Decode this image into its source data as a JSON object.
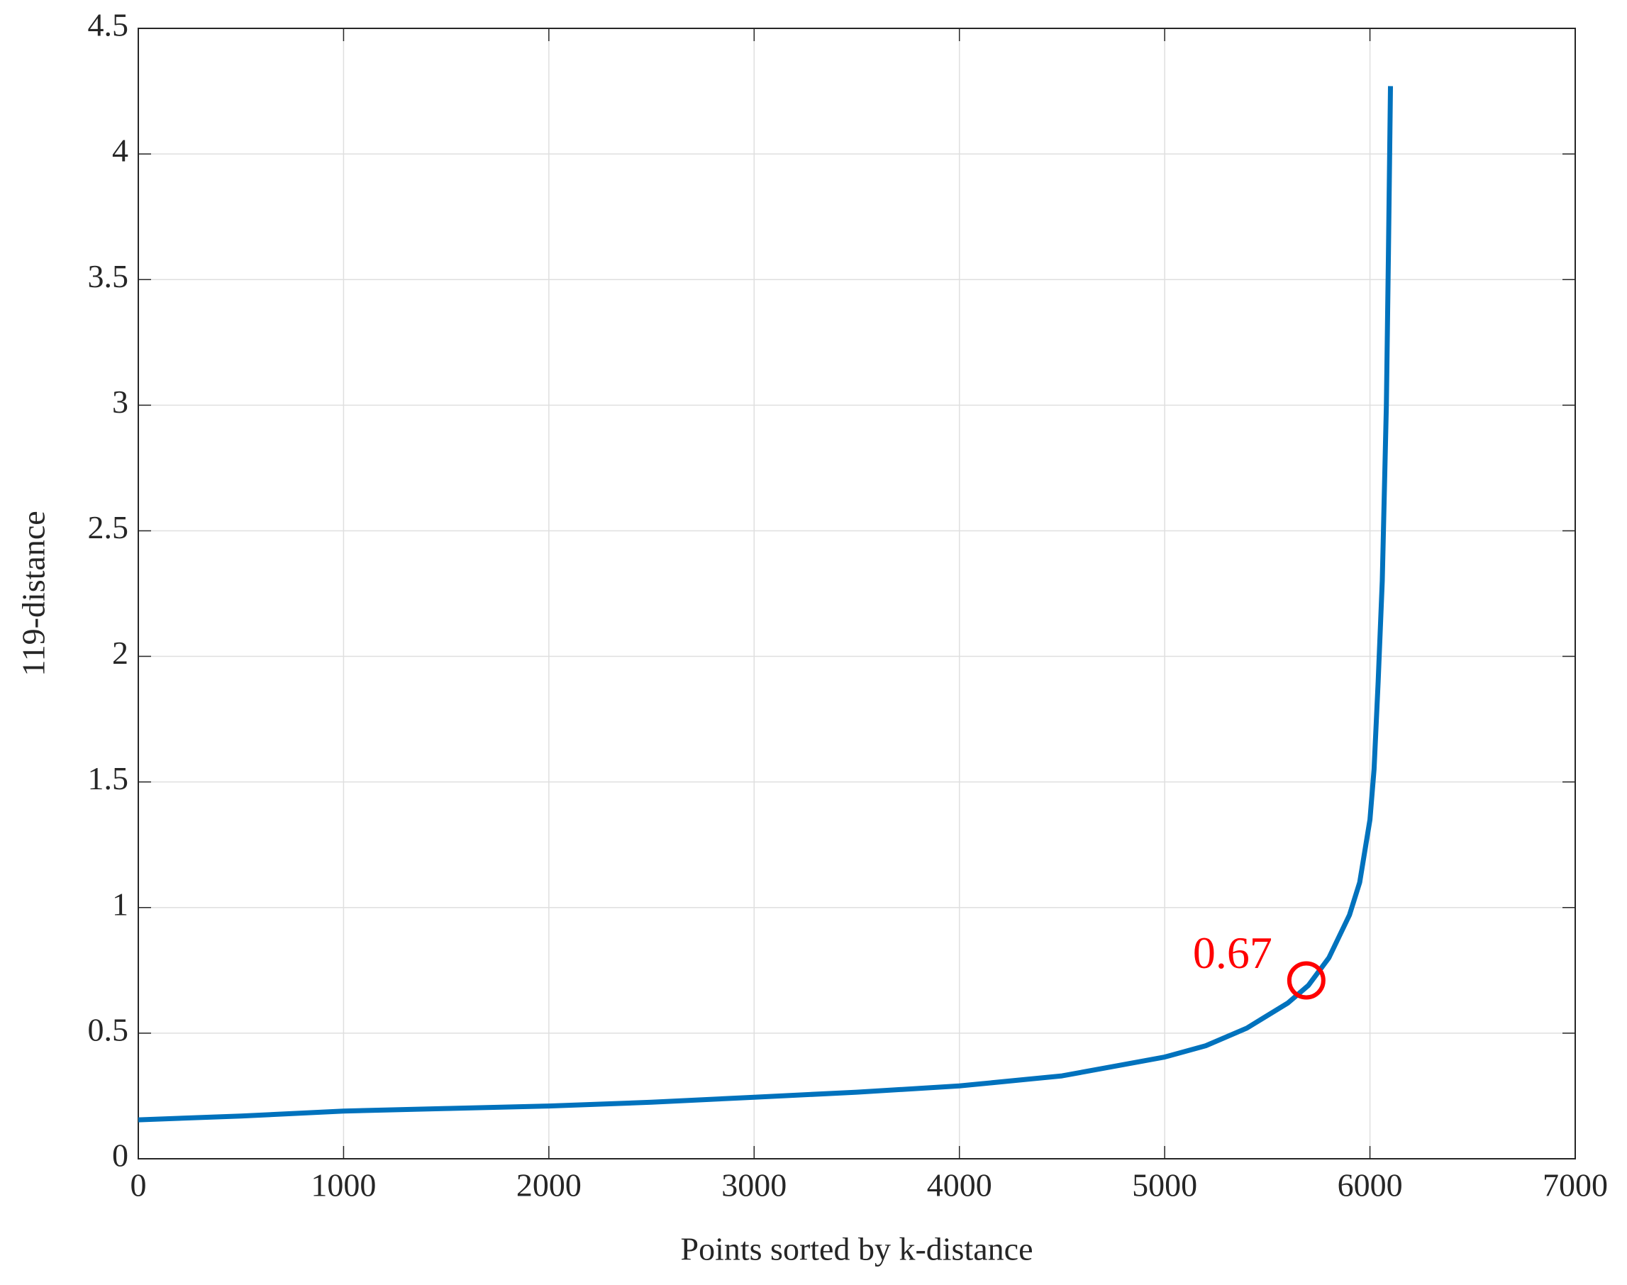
{
  "chart_data": {
    "type": "line",
    "xlabel": "Points sorted by k-distance",
    "ylabel": "119-distance",
    "x": [
      0,
      500,
      1000,
      1500,
      2000,
      2500,
      3000,
      3500,
      4000,
      4500,
      4800,
      5000,
      5200,
      5400,
      5600,
      5700,
      5800,
      5900,
      5950,
      6000,
      6020,
      6040,
      6060,
      6080,
      6090,
      6100
    ],
    "series": [
      {
        "color": "#0072bd",
        "values": [
          0.155,
          0.17,
          0.19,
          0.2,
          0.21,
          0.225,
          0.245,
          0.265,
          0.29,
          0.33,
          0.375,
          0.405,
          0.45,
          0.52,
          0.62,
          0.69,
          0.8,
          0.97,
          1.1,
          1.35,
          1.55,
          1.9,
          2.3,
          3.0,
          3.6,
          4.27
        ]
      }
    ],
    "annotations": [
      {
        "text": "0.67",
        "x": 5690,
        "y": 0.71,
        "color": "#ff0000"
      }
    ],
    "xlim": [
      0,
      7000
    ],
    "xticks": [
      0,
      1000,
      2000,
      3000,
      4000,
      5000,
      6000,
      7000
    ],
    "ylim": [
      0,
      4.5
    ],
    "yticks": [
      0,
      0.5,
      1,
      1.5,
      2,
      2.5,
      3,
      3.5,
      4,
      4.5
    ],
    "grid": true
  }
}
